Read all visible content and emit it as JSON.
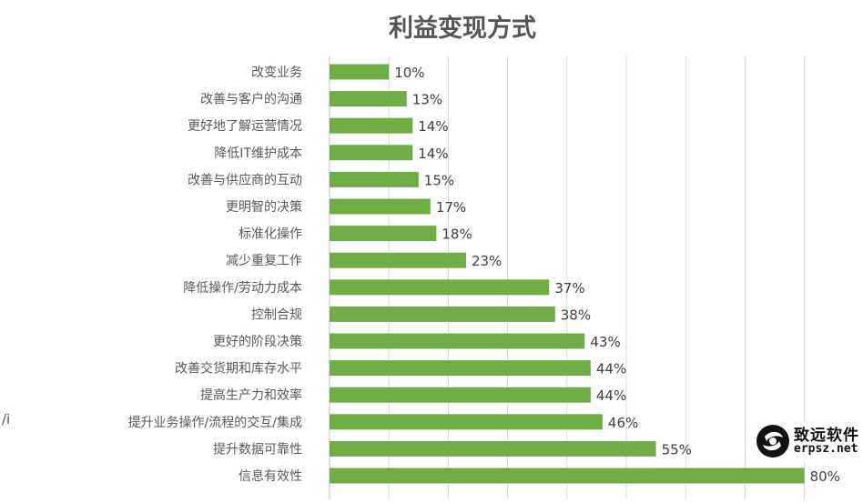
{
  "chart_data": {
    "type": "bar",
    "orientation": "horizontal",
    "title": "利益变现方式",
    "xlabel": "",
    "ylabel": "",
    "xlim": [
      0,
      90
    ],
    "grid": true,
    "legend": "none",
    "bar_color": "#70ad47",
    "categories": [
      "改变业务",
      "改善与客户的沟通",
      "更好地了解运营情况",
      "降低IT维护成本",
      "改善与供应商的互动",
      "更明智的决策",
      "标准化操作",
      "减少重复工作",
      "降低操作/劳动力成本",
      "控制合规",
      "更好的阶段决策",
      "改善交货期和库存水平",
      "提高生产力和效率",
      "提升业务操作/流程的交互/集成",
      "提升数据可靠性",
      "信息有效性"
    ],
    "values": [
      10,
      13,
      14,
      14,
      15,
      17,
      18,
      23,
      37,
      38,
      43,
      44,
      44,
      46,
      55,
      80
    ],
    "value_labels": [
      "10%",
      "13%",
      "14%",
      "14%",
      "15%",
      "17%",
      "18%",
      "23%",
      "37%",
      "38%",
      "43%",
      "44%",
      "44%",
      "46%",
      "55%",
      "80%"
    ]
  },
  "stray_text": "/i",
  "watermark": {
    "cn": "致远软件",
    "en": "erpsz.net"
  }
}
